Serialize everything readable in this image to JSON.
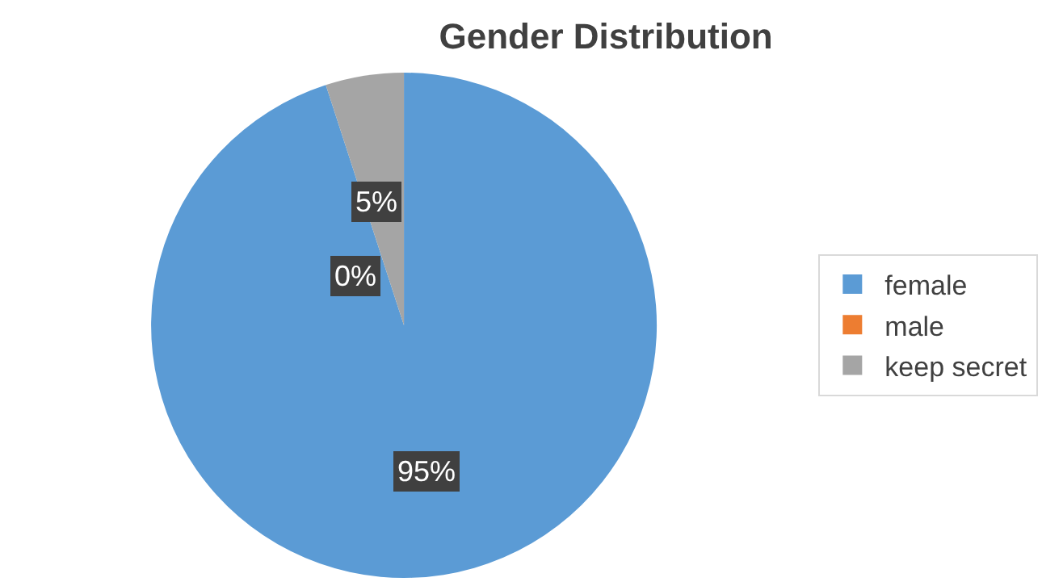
{
  "chart_data": {
    "type": "pie",
    "title": "Gender Distribution",
    "categories": [
      "female",
      "male",
      "keep secret"
    ],
    "values": [
      95,
      0,
      5
    ],
    "colors": [
      "#5b9bd5",
      "#ed7d31",
      "#a5a5a5"
    ],
    "value_labels": [
      "95%",
      "0%",
      "5%"
    ],
    "legend": "right"
  }
}
